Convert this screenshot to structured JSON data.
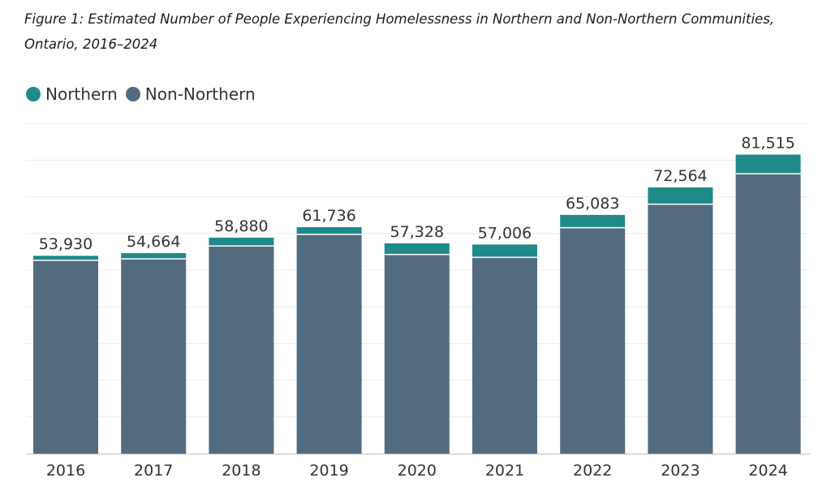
{
  "chart_data": {
    "type": "bar",
    "stacked": true,
    "title": "Figure 1: Estimated Number of People Experiencing Homelessness in Northern and Non-Northern Communities, Ontario, 2016–2024",
    "categories": [
      "2016",
      "2017",
      "2018",
      "2019",
      "2020",
      "2021",
      "2022",
      "2023",
      "2024"
    ],
    "series": [
      {
        "name": "Non-Northern",
        "color": "#536b7e",
        "values": [
          52700,
          53100,
          56600,
          59800,
          54300,
          53500,
          61600,
          68000,
          76300
        ]
      },
      {
        "name": "Northern",
        "color": "#1f8a8a",
        "values": [
          1230,
          1564,
          2280,
          1936,
          3028,
          3506,
          3483,
          4564,
          5215
        ]
      }
    ],
    "totals": [
      53930,
      54664,
      58880,
      61736,
      57328,
      57006,
      65083,
      72564,
      81515
    ],
    "total_labels": [
      "53,930",
      "54,664",
      "58,880",
      "61,736",
      "57,328",
      "57,006",
      "65,083",
      "72,564",
      "81,515"
    ],
    "xlabel": "",
    "ylabel": "",
    "ylim": [
      0,
      90000
    ],
    "grid": true,
    "legend_position": "top-left"
  }
}
